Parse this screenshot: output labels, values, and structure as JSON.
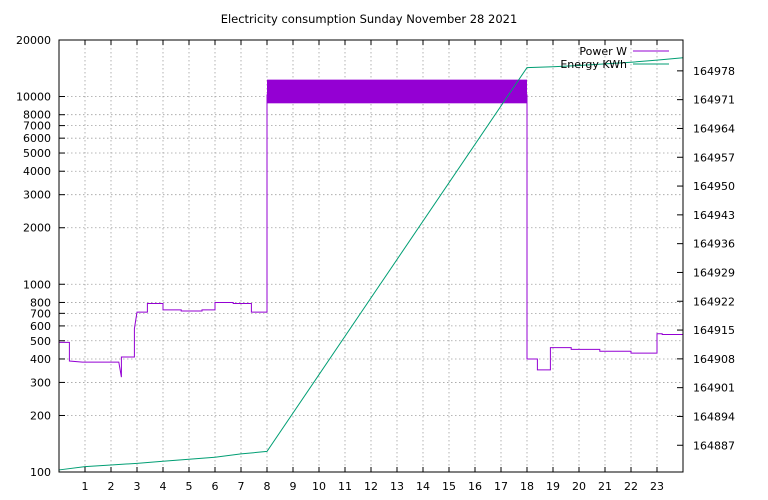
{
  "chart_data": {
    "type": "line",
    "title": "Electricity consumption Sunday November 28 2021",
    "xlabel": "",
    "ylabel": "",
    "y2label": "",
    "xlim": [
      0,
      24
    ],
    "x_ticks": [
      1,
      2,
      3,
      4,
      5,
      6,
      7,
      8,
      9,
      10,
      11,
      12,
      13,
      14,
      15,
      16,
      17,
      18,
      19,
      20,
      21,
      22,
      23
    ],
    "ylim": [
      100,
      20000
    ],
    "y_scale": "log",
    "y_ticks": [
      100,
      200,
      300,
      400,
      500,
      600,
      700,
      800,
      1000,
      2000,
      3000,
      4000,
      5000,
      6000,
      7000,
      8000,
      10000,
      20000
    ],
    "y2lim": [
      164880.5,
      164985.5
    ],
    "y2_ticks": [
      164887,
      164894,
      164901,
      164908,
      164915,
      164922,
      164929,
      164936,
      164943,
      164950,
      164957,
      164964,
      164971,
      164978
    ],
    "grid": true,
    "legend_position": "top-right",
    "series": [
      {
        "name": "Power W",
        "color": "#9400d3",
        "axis": "left",
        "points": [
          [
            0,
            490
          ],
          [
            0.4,
            490
          ],
          [
            0.4,
            390
          ],
          [
            0.9,
            385
          ],
          [
            2.3,
            385
          ],
          [
            2.4,
            320
          ],
          [
            2.4,
            410
          ],
          [
            2.9,
            410
          ],
          [
            2.9,
            580
          ],
          [
            3.0,
            710
          ],
          [
            3.4,
            710
          ],
          [
            3.4,
            790
          ],
          [
            4.0,
            790
          ],
          [
            4.0,
            730
          ],
          [
            4.7,
            730
          ],
          [
            4.7,
            720
          ],
          [
            5.5,
            720
          ],
          [
            5.5,
            730
          ],
          [
            6.0,
            730
          ],
          [
            6.0,
            800
          ],
          [
            6.7,
            800
          ],
          [
            6.7,
            790
          ],
          [
            7.4,
            790
          ],
          [
            7.4,
            710
          ],
          [
            8.0,
            710
          ],
          [
            8.0,
            10200
          ],
          [
            18.0,
            10200
          ],
          [
            18.0,
            400
          ],
          [
            18.4,
            400
          ],
          [
            18.4,
            350
          ],
          [
            18.9,
            350
          ],
          [
            18.9,
            460
          ],
          [
            19.7,
            460
          ],
          [
            19.7,
            450
          ],
          [
            20.8,
            450
          ],
          [
            20.8,
            440
          ],
          [
            22.0,
            440
          ],
          [
            22.0,
            430
          ],
          [
            23.0,
            430
          ],
          [
            23.0,
            545
          ],
          [
            23.2,
            545
          ],
          [
            23.2,
            540
          ],
          [
            24.0,
            540
          ]
        ]
      },
      {
        "name": "Energy KWh",
        "color": "#009e73",
        "axis": "right",
        "points": [
          [
            0,
            164881
          ],
          [
            1,
            164881.8
          ],
          [
            2,
            164882.2
          ],
          [
            3,
            164882.6
          ],
          [
            4,
            164883.1
          ],
          [
            5,
            164883.6
          ],
          [
            6,
            164884.1
          ],
          [
            7,
            164884.9
          ],
          [
            8,
            164885.5
          ],
          [
            18,
            164978.8
          ],
          [
            19,
            164979
          ],
          [
            20,
            164979.3
          ],
          [
            21,
            164979.7
          ],
          [
            22,
            164980.1
          ],
          [
            23,
            164980.6
          ],
          [
            24,
            164981.2
          ]
        ]
      }
    ],
    "band": {
      "series": "Power W",
      "x_range": [
        8,
        18
      ],
      "y_range": [
        9200,
        12300
      ]
    }
  }
}
